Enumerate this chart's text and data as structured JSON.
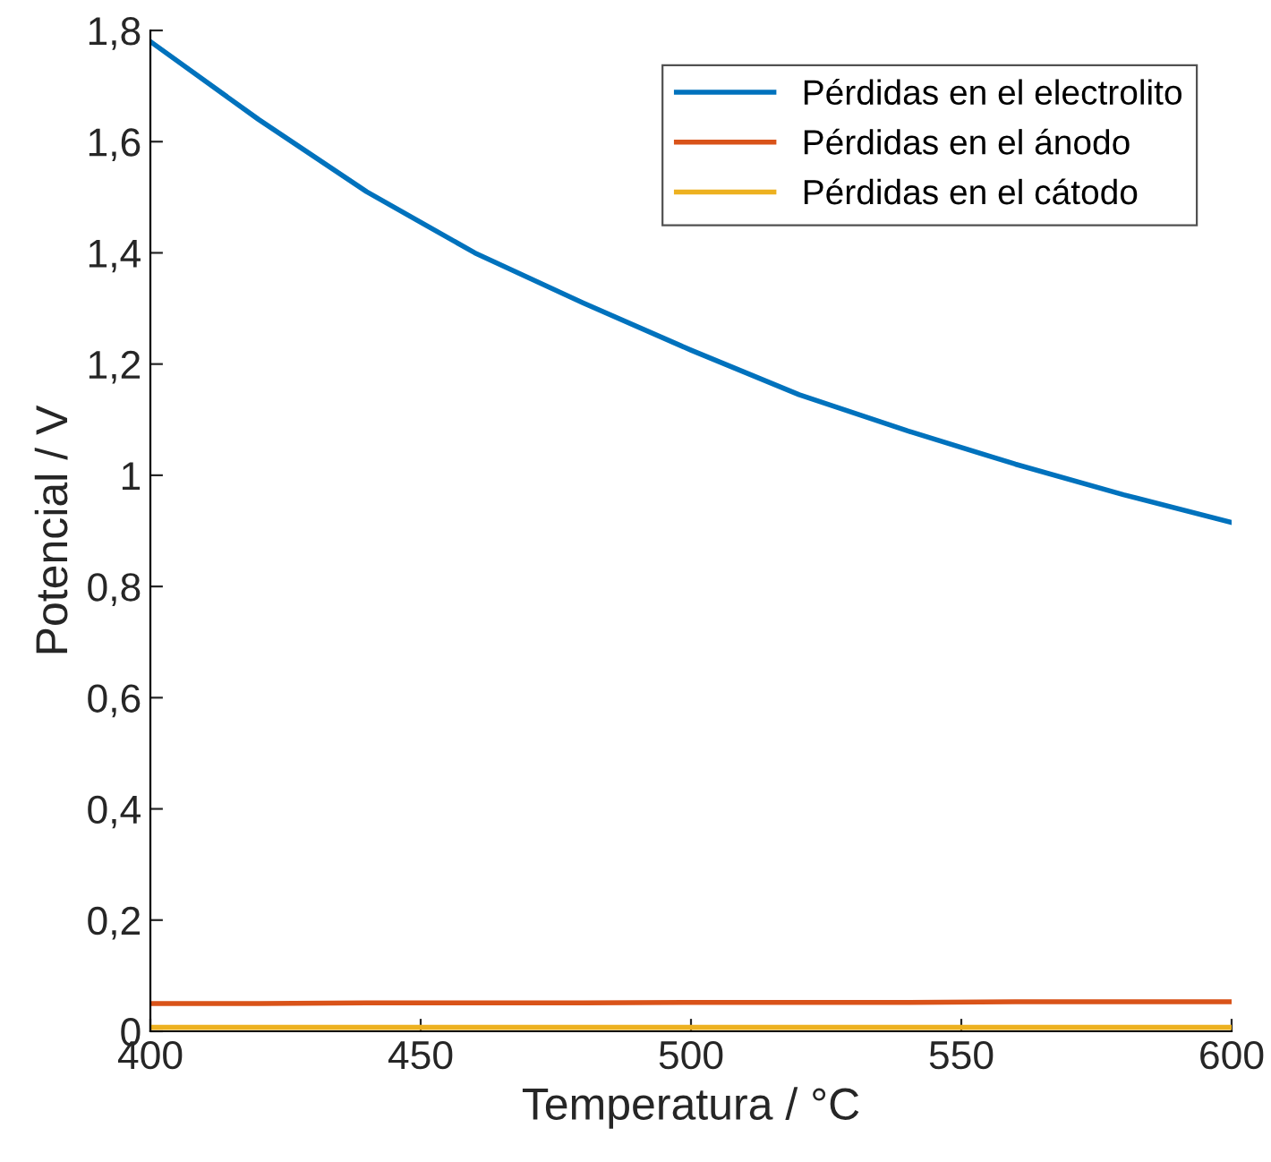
{
  "chart_data": {
    "type": "line",
    "xlabel": "Temperatura / °C",
    "ylabel": "Potencial / V",
    "x": [
      400,
      420,
      440,
      460,
      480,
      500,
      520,
      540,
      560,
      580,
      600
    ],
    "series": [
      {
        "name": "Pérdidas en el electrolito",
        "color": "#0072bd",
        "values": [
          1.78,
          1.64,
          1.51,
          1.4,
          1.31,
          1.225,
          1.145,
          1.08,
          1.02,
          0.965,
          0.915
        ]
      },
      {
        "name": "Pérdidas en el ánodo",
        "color": "#d95319",
        "values": [
          0.05,
          0.05,
          0.051,
          0.051,
          0.051,
          0.052,
          0.052,
          0.052,
          0.053,
          0.053,
          0.053
        ]
      },
      {
        "name": "Pérdidas en el cátodo",
        "color": "#edb120",
        "values": [
          0.007,
          0.007,
          0.007,
          0.007,
          0.007,
          0.007,
          0.007,
          0.007,
          0.007,
          0.007,
          0.007
        ]
      }
    ],
    "xlim": [
      400,
      600
    ],
    "xticks": [
      400,
      450,
      500,
      550,
      600
    ],
    "ylim": [
      0,
      1.8
    ],
    "yticks": [
      0,
      {
        "value": 0.2,
        "label": "0,2"
      },
      {
        "value": 0.4,
        "label": "0,4"
      },
      {
        "value": 0.6,
        "label": "0,6"
      },
      {
        "value": 0.8,
        "label": "0,8"
      },
      1,
      {
        "value": 1.2,
        "label": "1,2"
      },
      {
        "value": 1.4,
        "label": "1,4"
      },
      {
        "value": 1.6,
        "label": "1,6"
      },
      {
        "value": 1.8,
        "label": "1,8"
      }
    ],
    "legend": "top right",
    "grid": false,
    "marker": "none",
    "line_style": "solid"
  }
}
